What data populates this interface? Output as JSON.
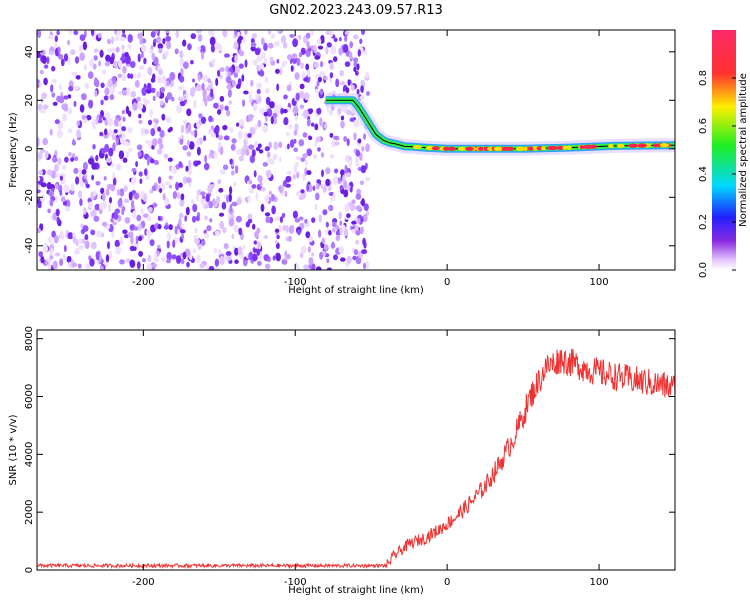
{
  "title": "GN02.2023.243.09.57.R13",
  "chart_data": [
    {
      "type": "heatmap",
      "xlabel": "Height of straight line (km)",
      "ylabel": "Frequency (Hz)",
      "xlim": [
        -270,
        150
      ],
      "ylim": [
        -50,
        49
      ],
      "xticks": [
        -200,
        -100,
        0,
        100
      ],
      "yticks": [
        -40,
        -20,
        0,
        20,
        40
      ],
      "colorbar": {
        "label": "Normalized spectral amplitude",
        "range": [
          0,
          1
        ],
        "ticks": [
          0.0,
          0.2,
          0.4,
          0.6,
          0.8
        ]
      },
      "noise_region": [
        -270,
        -52
      ],
      "frequency_track": [
        [
          -80,
          20
        ],
        [
          -62,
          20
        ],
        [
          -58,
          17
        ],
        [
          -52,
          11
        ],
        [
          -47,
          6
        ],
        [
          -42,
          3.5
        ],
        [
          -38,
          2.5
        ],
        [
          -34,
          2
        ],
        [
          -28,
          1
        ],
        [
          -22,
          0.8
        ],
        [
          -15,
          0.5
        ],
        [
          0,
          0
        ],
        [
          50,
          0
        ],
        [
          80,
          0.5
        ],
        [
          110,
          1.2
        ],
        [
          150,
          1.5
        ]
      ]
    },
    {
      "type": "line",
      "xlabel": "Height of straight line (km)",
      "ylabel": "SNR (10 * v/v)",
      "xlim": [
        -270,
        150
      ],
      "ylim": [
        0,
        8300
      ],
      "xticks": [
        -200,
        -100,
        0,
        100
      ],
      "yticks": [
        0,
        2000,
        4000,
        6000,
        8000
      ],
      "series": [
        {
          "color": "#ee3333",
          "points": [
            [
              -270,
              150
            ],
            [
              -40,
              150
            ],
            [
              -35,
              500
            ],
            [
              -25,
              900
            ],
            [
              -15,
              1100
            ],
            [
              -5,
              1400
            ],
            [
              5,
              1800
            ],
            [
              15,
              2300
            ],
            [
              25,
              2900
            ],
            [
              35,
              3700
            ],
            [
              45,
              4700
            ],
            [
              55,
              6000
            ],
            [
              65,
              7000
            ],
            [
              75,
              7300
            ],
            [
              85,
              7100
            ],
            [
              95,
              6900
            ],
            [
              110,
              6700
            ],
            [
              130,
              6500
            ],
            [
              150,
              6300
            ]
          ]
        }
      ]
    }
  ]
}
